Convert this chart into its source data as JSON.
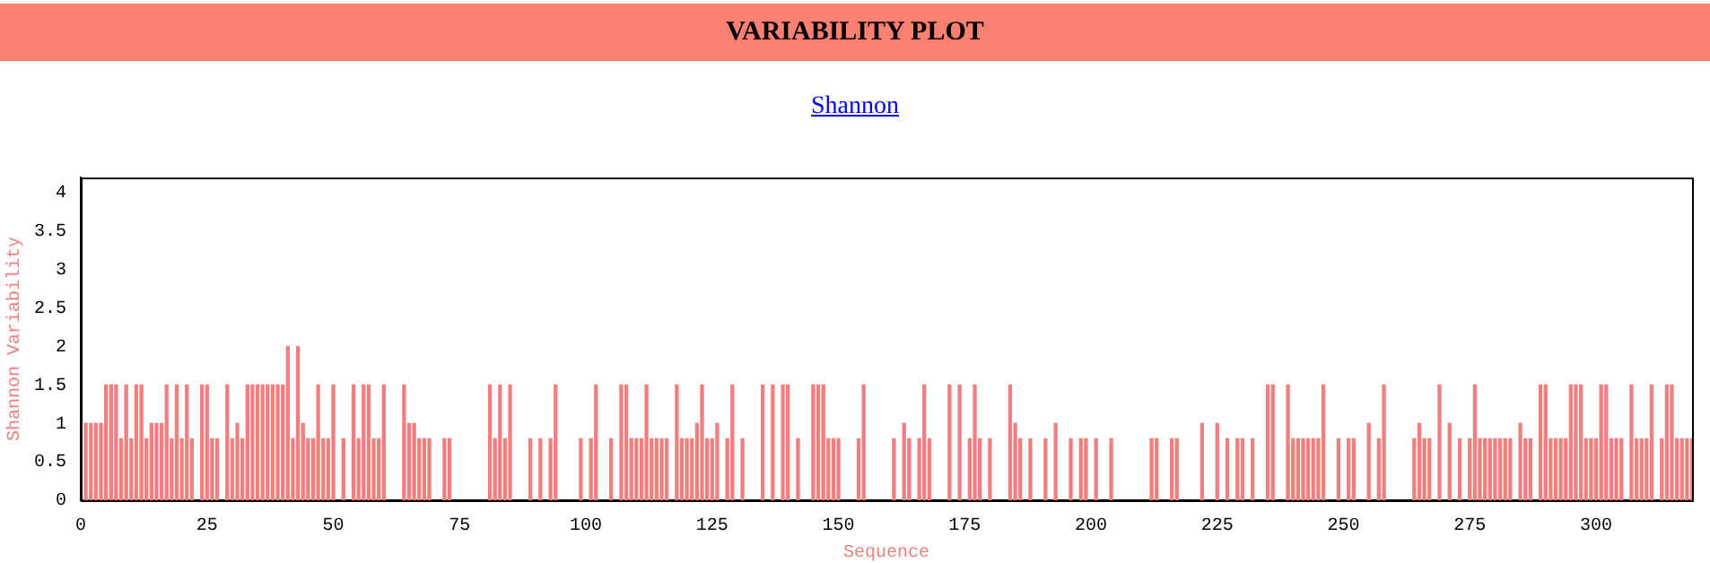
{
  "chart_data": {
    "type": "bar",
    "title": "VARIABILITY PLOT",
    "subtitle": "Shannon",
    "xlabel": "Sequence",
    "ylabel": "Shannon Variability",
    "color": "#f08080",
    "x": [
      1,
      2,
      3,
      4,
      5,
      6,
      7,
      8,
      9,
      10,
      11,
      12,
      13,
      14,
      15,
      16,
      17,
      18,
      19,
      20,
      21,
      22,
      24,
      25,
      26,
      27,
      29,
      30,
      31,
      32,
      33,
      34,
      35,
      36,
      37,
      38,
      39,
      40,
      41,
      42,
      43,
      44,
      45,
      46,
      47,
      48,
      49,
      50,
      52,
      54,
      55,
      56,
      57,
      58,
      59,
      60,
      64,
      65,
      66,
      67,
      68,
      69,
      72,
      73,
      81,
      82,
      83,
      84,
      85,
      89,
      91,
      93,
      94,
      99,
      101,
      102,
      105,
      107,
      108,
      109,
      110,
      111,
      112,
      113,
      114,
      115,
      116,
      118,
      119,
      120,
      121,
      122,
      123,
      124,
      125,
      126,
      128,
      129,
      131,
      135,
      137,
      139,
      140,
      142,
      145,
      146,
      147,
      148,
      149,
      150,
      154,
      155,
      161,
      163,
      164,
      166,
      167,
      168,
      172,
      174,
      176,
      177,
      178,
      180,
      184,
      185,
      186,
      188,
      191,
      193,
      196,
      198,
      199,
      201,
      204,
      212,
      213,
      216,
      217,
      222,
      225,
      227,
      229,
      230,
      232,
      235,
      236,
      239,
      240,
      241,
      242,
      243,
      244,
      245,
      246,
      249,
      251,
      252,
      255,
      257,
      258,
      264,
      265,
      266,
      267,
      269,
      271,
      273,
      275,
      276,
      277,
      278,
      279,
      280,
      281,
      282,
      283,
      285,
      286,
      287,
      289,
      290,
      291,
      292,
      293,
      294,
      295,
      296,
      297,
      298,
      299,
      300,
      301,
      302,
      303,
      304,
      305,
      307,
      308,
      309,
      310,
      311,
      313,
      314,
      315,
      316,
      317,
      318,
      319
    ],
    "values": [
      1,
      1,
      1,
      1,
      1.5,
      1.5,
      1.5,
      0.8,
      1.5,
      0.8,
      1.5,
      1.5,
      0.8,
      1,
      1,
      1,
      1.5,
      0.8,
      1.5,
      0.8,
      1.5,
      0.8,
      1.5,
      1.5,
      0.8,
      0.8,
      1.5,
      0.8,
      1,
      0.8,
      1.5,
      1.5,
      1.5,
      1.5,
      1.5,
      1.5,
      1.5,
      1.5,
      2,
      0.8,
      2,
      1,
      0.8,
      0.8,
      1.5,
      0.8,
      0.8,
      1.5,
      0.8,
      1.5,
      0.8,
      1.5,
      1.5,
      0.8,
      0.8,
      1.5,
      1.5,
      1,
      1,
      0.8,
      0.8,
      0.8,
      0.8,
      0.8,
      1.5,
      0.8,
      1.5,
      0.8,
      1.5,
      0.8,
      0.8,
      0.8,
      1.5,
      0.8,
      0.8,
      1.5,
      0.8,
      1.5,
      1.5,
      0.8,
      0.8,
      0.8,
      1.5,
      0.8,
      0.8,
      0.8,
      0.8,
      1.5,
      0.8,
      0.8,
      0.8,
      1,
      1.5,
      0.8,
      0.8,
      1,
      0.8,
      1.5,
      0.8,
      1.5,
      1.5,
      1.5,
      1.5,
      0.8,
      1.5,
      1.5,
      1.5,
      0.8,
      0.8,
      0.8,
      0.8,
      1.5,
      0.8,
      1,
      0.8,
      0.8,
      1.5,
      0.8,
      1.5,
      1.5,
      0.8,
      1.5,
      0.8,
      0.8,
      1.5,
      1,
      0.8,
      0.8,
      0.8,
      1,
      0.8,
      0.8,
      0.8,
      0.8,
      0.8,
      0.8,
      0.8,
      0.8,
      0.8,
      1,
      1,
      0.8,
      0.8,
      0.8,
      0.8,
      1.5,
      1.5,
      1.5,
      0.8,
      0.8,
      0.8,
      0.8,
      0.8,
      0.8,
      1.5,
      0.8,
      0.8,
      0.8,
      1,
      0.8,
      1.5,
      0.8,
      1,
      0.8,
      0.8,
      1.5,
      1,
      0.8,
      0.8,
      1.5,
      0.8,
      0.8,
      0.8,
      0.8,
      0.8,
      0.8,
      0.8,
      1,
      0.8,
      0.8,
      1.5,
      1.5,
      0.8,
      0.8,
      0.8,
      0.8,
      1.5,
      1.5,
      1.5,
      0.8,
      0.8,
      0.8,
      1.5,
      1.5,
      0.8,
      0.8,
      0.8,
      1.5,
      0.8,
      0.8,
      0.8,
      1.5,
      0.8,
      1.5,
      1.5,
      0.8,
      0.8,
      0.8,
      0.8
    ],
    "xlim": [
      0,
      319
    ],
    "xticks": [
      0,
      25,
      50,
      75,
      100,
      125,
      150,
      175,
      200,
      225,
      250,
      275,
      300
    ],
    "ylim": [
      0,
      4.2
    ],
    "yticks": [
      0,
      0.5,
      1,
      1.5,
      2,
      2.5,
      3,
      3.5,
      4
    ],
    "grid": false,
    "legend": false
  }
}
